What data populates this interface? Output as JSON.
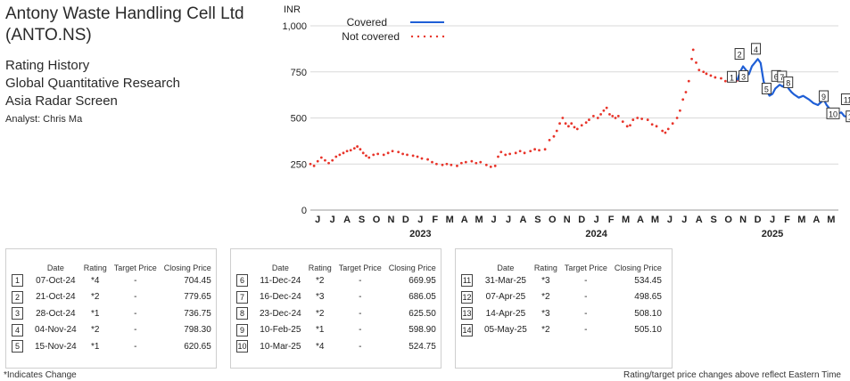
{
  "header": {
    "company_line1": "Antony Waste Handling Cell Ltd",
    "company_line2": "(ANTO.NS)",
    "lines": [
      "Rating History",
      "Global Quantitative Research",
      "Asia Radar Screen"
    ],
    "analyst": "Analyst: Chris Ma"
  },
  "chart_data": {
    "type": "line",
    "ylabel": "INR",
    "ylim": [
      0,
      1000
    ],
    "yticks": [
      0,
      250,
      500,
      750,
      "1,000"
    ],
    "x_months": [
      "J",
      "J",
      "A",
      "S",
      "O",
      "N",
      "D",
      "J",
      "F",
      "M",
      "A",
      "M",
      "J",
      "J",
      "A",
      "S",
      "O",
      "N",
      "D",
      "J",
      "F",
      "M",
      "A",
      "M",
      "J",
      "J",
      "A",
      "S",
      "O",
      "N",
      "D",
      "J",
      "F",
      "M",
      "A",
      "M"
    ],
    "x_years": [
      "2023",
      "2024",
      "2025"
    ],
    "legend": [
      "Covered",
      "Not covered"
    ],
    "legend_position": "top-left",
    "colors": {
      "covered": "#1f5fd6",
      "not_covered": "#e8342a"
    },
    "series": [
      {
        "name": "Not covered",
        "points": [
          [
            0,
            250
          ],
          [
            0.25,
            240
          ],
          [
            0.5,
            265
          ],
          [
            0.75,
            285
          ],
          [
            1,
            270
          ],
          [
            1.25,
            255
          ],
          [
            1.5,
            270
          ],
          [
            1.75,
            290
          ],
          [
            2,
            300
          ],
          [
            2.25,
            310
          ],
          [
            2.5,
            320
          ],
          [
            2.75,
            325
          ],
          [
            3,
            335
          ],
          [
            3.2,
            345
          ],
          [
            3.4,
            330
          ],
          [
            3.6,
            310
          ],
          [
            3.8,
            295
          ],
          [
            4,
            285
          ],
          [
            4.3,
            300
          ],
          [
            4.6,
            305
          ],
          [
            5,
            300
          ],
          [
            5.3,
            310
          ],
          [
            5.6,
            320
          ],
          [
            6,
            315
          ],
          [
            6.3,
            305
          ],
          [
            6.6,
            300
          ],
          [
            7,
            295
          ],
          [
            7.3,
            290
          ],
          [
            7.6,
            280
          ],
          [
            8,
            275
          ],
          [
            8.3,
            260
          ],
          [
            8.6,
            250
          ],
          [
            9,
            245
          ],
          [
            9.3,
            250
          ],
          [
            9.6,
            245
          ],
          [
            10,
            240
          ],
          [
            10.3,
            255
          ],
          [
            10.6,
            260
          ],
          [
            11,
            265
          ],
          [
            11.3,
            255
          ],
          [
            11.6,
            260
          ],
          [
            12,
            245
          ],
          [
            12.3,
            235
          ],
          [
            12.6,
            240
          ],
          [
            12.8,
            290
          ],
          [
            13,
            315
          ],
          [
            13.3,
            300
          ],
          [
            13.6,
            305
          ],
          [
            14,
            310
          ],
          [
            14.3,
            320
          ],
          [
            14.6,
            310
          ],
          [
            15,
            320
          ],
          [
            15.3,
            330
          ],
          [
            15.6,
            325
          ],
          [
            16,
            330
          ],
          [
            16.3,
            380
          ],
          [
            16.6,
            400
          ],
          [
            16.8,
            430
          ],
          [
            17,
            470
          ],
          [
            17.2,
            500
          ],
          [
            17.4,
            470
          ],
          [
            17.6,
            455
          ],
          [
            17.8,
            470
          ],
          [
            18,
            450
          ],
          [
            18.2,
            440
          ],
          [
            18.5,
            460
          ],
          [
            18.8,
            475
          ],
          [
            19,
            490
          ],
          [
            19.3,
            510
          ],
          [
            19.6,
            500
          ],
          [
            19.8,
            520
          ],
          [
            20,
            540
          ],
          [
            20.2,
            555
          ],
          [
            20.4,
            520
          ],
          [
            20.6,
            510
          ],
          [
            20.8,
            500
          ],
          [
            21,
            510
          ],
          [
            21.3,
            480
          ],
          [
            21.6,
            455
          ],
          [
            21.8,
            460
          ],
          [
            22,
            490
          ],
          [
            22.3,
            500
          ],
          [
            22.6,
            495
          ],
          [
            23,
            490
          ],
          [
            23.3,
            465
          ],
          [
            23.6,
            455
          ],
          [
            24,
            430
          ],
          [
            24.2,
            420
          ],
          [
            24.4,
            440
          ],
          [
            24.7,
            470
          ],
          [
            25,
            500
          ],
          [
            25.2,
            540
          ],
          [
            25.4,
            600
          ],
          [
            25.6,
            640
          ],
          [
            25.8,
            700
          ],
          [
            26,
            820
          ],
          [
            26.1,
            870
          ],
          [
            26.3,
            800
          ],
          [
            26.5,
            760
          ],
          [
            26.8,
            750
          ],
          [
            27,
            740
          ],
          [
            27.3,
            730
          ],
          [
            27.6,
            720
          ],
          [
            28,
            715
          ],
          [
            28.3,
            700
          ],
          [
            28.6,
            710
          ],
          [
            28.9,
            700
          ],
          [
            29.1,
            704
          ]
        ]
      },
      {
        "name": "Covered",
        "points": [
          [
            29.1,
            704
          ],
          [
            29.3,
            750
          ],
          [
            29.5,
            780
          ],
          [
            29.7,
            760
          ],
          [
            29.9,
            737
          ],
          [
            30.1,
            780
          ],
          [
            30.3,
            800
          ],
          [
            30.5,
            820
          ],
          [
            30.7,
            798
          ],
          [
            30.9,
            700
          ],
          [
            31.1,
            650
          ],
          [
            31.3,
            621
          ],
          [
            31.5,
            630
          ],
          [
            31.7,
            660
          ],
          [
            32,
            680
          ],
          [
            32.2,
            670
          ],
          [
            32.4,
            686
          ],
          [
            32.6,
            660
          ],
          [
            32.8,
            640
          ],
          [
            33,
            626
          ],
          [
            33.3,
            610
          ],
          [
            33.6,
            620
          ],
          [
            34,
            600
          ],
          [
            34.3,
            580
          ],
          [
            34.6,
            570
          ],
          [
            35,
            599
          ],
          [
            35.2,
            570
          ],
          [
            35.5,
            540
          ],
          [
            35.8,
            520
          ],
          [
            36,
            525
          ],
          [
            36.2,
            530
          ],
          [
            36.4,
            510
          ],
          [
            36.7,
            505
          ],
          [
            37,
            500
          ],
          [
            37.2,
            534
          ],
          [
            37.5,
            499
          ],
          [
            37.7,
            508
          ],
          [
            37.9,
            505
          ]
        ]
      }
    ],
    "rating_markers": [
      {
        "n": "1",
        "x": 29.1,
        "y": 704
      },
      {
        "n": "2",
        "x": 29.5,
        "y": 780
      },
      {
        "n": "3",
        "x": 29.9,
        "y": 737
      },
      {
        "n": "4",
        "x": 30.5,
        "y": 798
      },
      {
        "n": "5",
        "x": 31.1,
        "y": 621
      },
      {
        "n": "6",
        "x": 32.0,
        "y": 670
      },
      {
        "n": "7",
        "x": 32.4,
        "y": 686
      },
      {
        "n": "8",
        "x": 32.7,
        "y": 626
      },
      {
        "n": "9",
        "x": 35.0,
        "y": 599
      },
      {
        "n": "10",
        "x": 36.0,
        "y": 525
      },
      {
        "n": "11",
        "x": 37.0,
        "y": 534
      },
      {
        "n": "12",
        "x": 37.2,
        "y": 499
      },
      {
        "n": "13",
        "x": 37.5,
        "y": 508
      },
      {
        "n": "14",
        "x": 38.1,
        "y": 505
      }
    ]
  },
  "table_headers": [
    "Date",
    "Rating",
    "Target Price",
    "Closing Price"
  ],
  "tables": [
    [
      {
        "n": "1",
        "date": "07-Oct-24",
        "rating": "*4",
        "target": "-",
        "close": "704.45"
      },
      {
        "n": "2",
        "date": "21-Oct-24",
        "rating": "*2",
        "target": "-",
        "close": "779.65"
      },
      {
        "n": "3",
        "date": "28-Oct-24",
        "rating": "*1",
        "target": "-",
        "close": "736.75"
      },
      {
        "n": "4",
        "date": "04-Nov-24",
        "rating": "*2",
        "target": "-",
        "close": "798.30"
      },
      {
        "n": "5",
        "date": "15-Nov-24",
        "rating": "*1",
        "target": "-",
        "close": "620.65"
      }
    ],
    [
      {
        "n": "6",
        "date": "11-Dec-24",
        "rating": "*2",
        "target": "-",
        "close": "669.95"
      },
      {
        "n": "7",
        "date": "16-Dec-24",
        "rating": "*3",
        "target": "-",
        "close": "686.05"
      },
      {
        "n": "8",
        "date": "23-Dec-24",
        "rating": "*2",
        "target": "-",
        "close": "625.50"
      },
      {
        "n": "9",
        "date": "10-Feb-25",
        "rating": "*1",
        "target": "-",
        "close": "598.90"
      },
      {
        "n": "10",
        "date": "10-Mar-25",
        "rating": "*4",
        "target": "-",
        "close": "524.75"
      }
    ],
    [
      {
        "n": "11",
        "date": "31-Mar-25",
        "rating": "*3",
        "target": "-",
        "close": "534.45"
      },
      {
        "n": "12",
        "date": "07-Apr-25",
        "rating": "*2",
        "target": "-",
        "close": "498.65"
      },
      {
        "n": "13",
        "date": "14-Apr-25",
        "rating": "*3",
        "target": "-",
        "close": "508.10"
      },
      {
        "n": "14",
        "date": "05-May-25",
        "rating": "*2",
        "target": "-",
        "close": "505.10"
      }
    ]
  ],
  "footer": {
    "left": "*Indicates Change",
    "right": "Rating/target price changes above reflect Eastern Time"
  }
}
